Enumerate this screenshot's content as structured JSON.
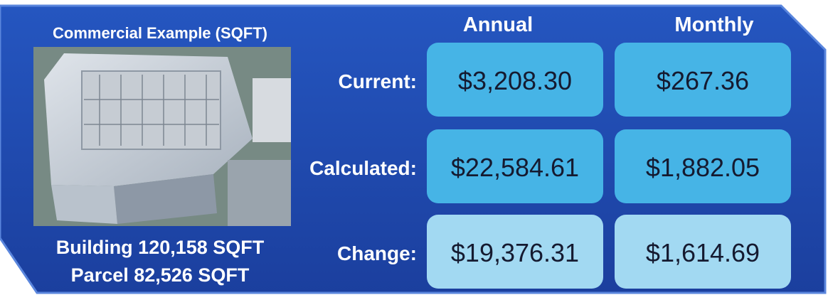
{
  "header": {
    "title": "Commercial Example (SQFT)"
  },
  "footer": [
    "Building 120,158 SQFT",
    "Parcel 82,526 SQFT"
  ],
  "table": {
    "columns": [
      "Annual",
      "Monthly"
    ],
    "rows": [
      {
        "label": "Current:",
        "values": [
          "$3,208.30",
          "$267.36"
        ]
      },
      {
        "label": "Calculated:",
        "values": [
          "$22,584.61",
          "$1,882.05"
        ]
      },
      {
        "label": "Change:",
        "values": [
          "$19,376.31",
          "$1,614.69"
        ]
      }
    ]
  }
}
